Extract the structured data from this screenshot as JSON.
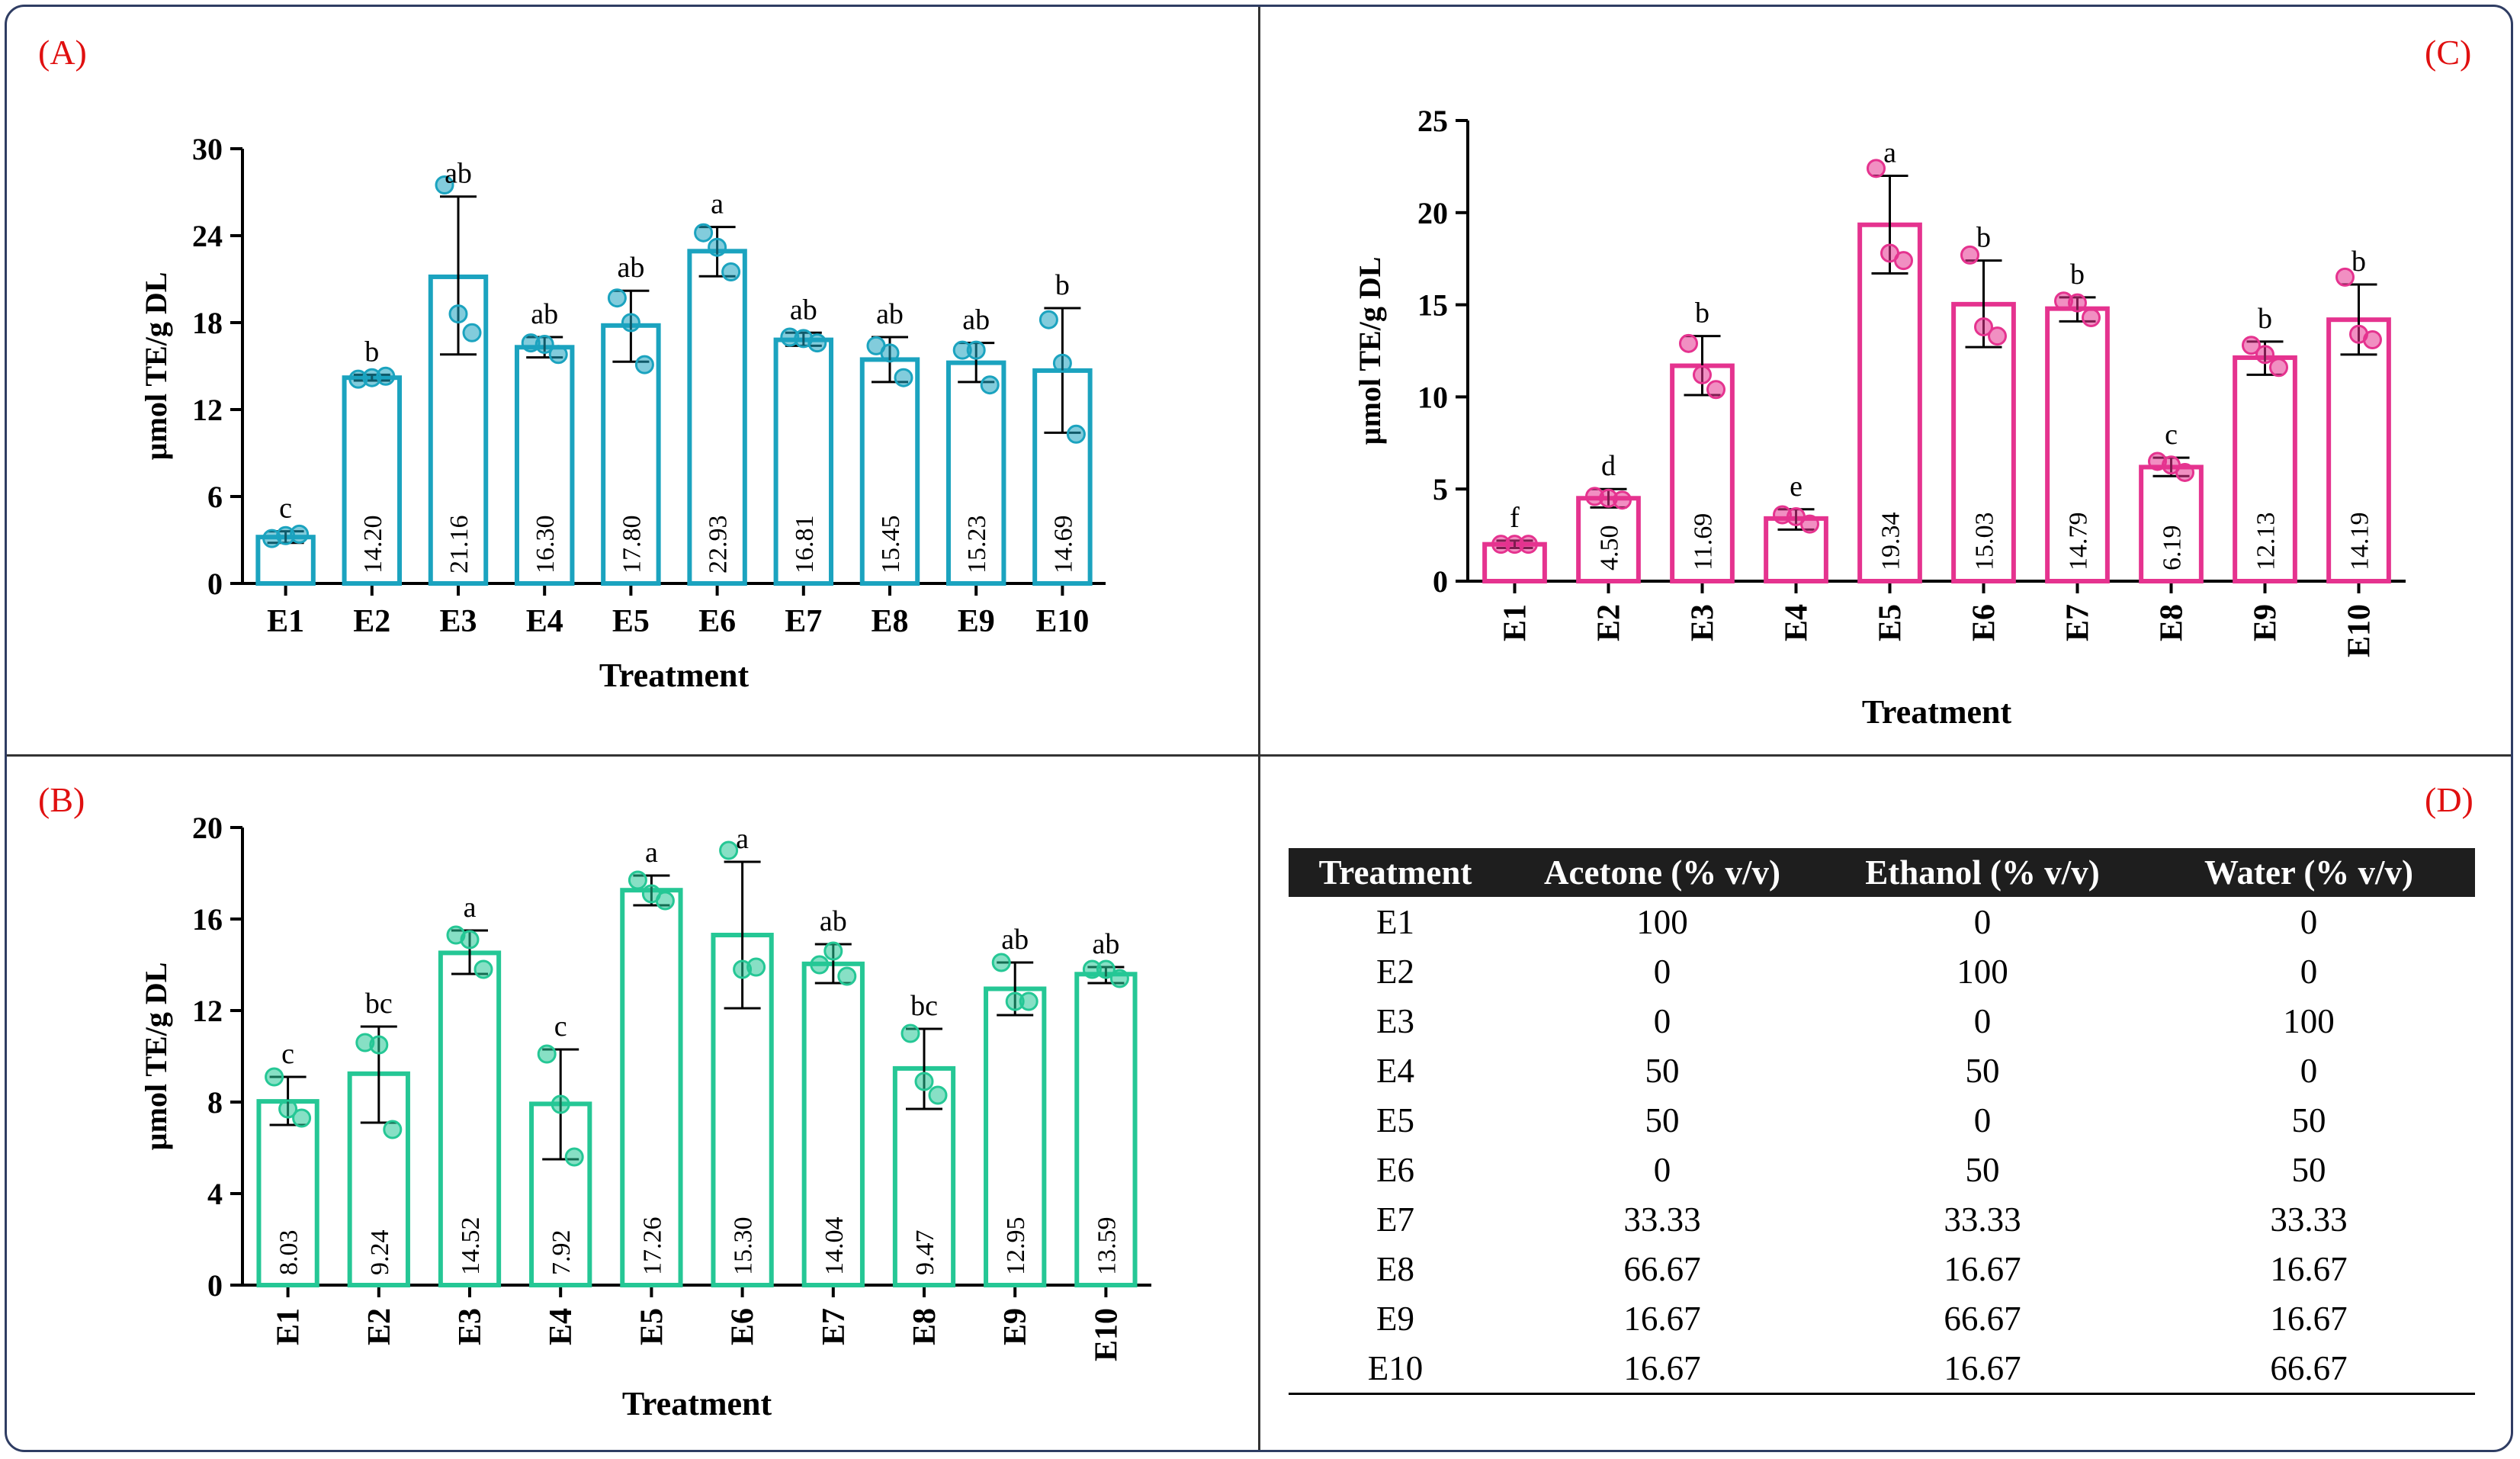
{
  "panels": {
    "A": {
      "label": "(A)",
      "color": "#1ba3bf"
    },
    "B": {
      "label": "(B)",
      "color": "#25c795"
    },
    "C": {
      "label": "(C)",
      "color": "#e5338f"
    },
    "D": {
      "label": "(D)"
    }
  },
  "chart_data": [
    {
      "id": "A",
      "type": "bar",
      "title": "",
      "xlabel": "Treatment",
      "ylabel": "µmol TE/g DL",
      "ylim": [
        0,
        30
      ],
      "yticks": [
        0,
        6,
        12,
        18,
        24,
        30
      ],
      "categories": [
        "E1",
        "E2",
        "E3",
        "E4",
        "E5",
        "E6",
        "E7",
        "E8",
        "E9",
        "E10"
      ],
      "values": [
        3.2,
        14.2,
        21.16,
        16.3,
        17.8,
        22.93,
        16.81,
        15.45,
        15.23,
        14.69
      ],
      "value_labels": [
        "",
        "14.20",
        "21.16",
        "16.30",
        "17.80",
        "22.93",
        "16.81",
        "15.45",
        "15.23",
        "14.69"
      ],
      "error_low": [
        2.8,
        14.0,
        15.8,
        15.6,
        15.3,
        21.2,
        16.4,
        13.9,
        13.9,
        10.4
      ],
      "error_high": [
        3.6,
        14.4,
        26.7,
        17.0,
        20.2,
        24.6,
        17.3,
        17.0,
        16.6,
        19.0
      ],
      "points": [
        [
          3.1,
          3.3,
          3.4
        ],
        [
          14.1,
          14.2,
          14.3
        ],
        [
          27.5,
          18.6,
          17.3
        ],
        [
          16.6,
          16.5,
          15.8
        ],
        [
          19.7,
          18.0,
          15.1
        ],
        [
          24.2,
          23.2,
          21.5
        ],
        [
          17.0,
          16.9,
          16.6
        ],
        [
          16.4,
          15.9,
          14.2
        ],
        [
          16.1,
          16.1,
          13.7
        ],
        [
          18.2,
          15.2,
          10.3
        ]
      ],
      "letters": [
        "c",
        "b",
        "ab",
        "ab",
        "ab",
        "a",
        "ab",
        "ab",
        "ab",
        "b"
      ],
      "x_tick_rotation": 0
    },
    {
      "id": "B",
      "type": "bar",
      "title": "",
      "xlabel": "Treatment",
      "ylabel": "µmol TE/g DL",
      "ylim": [
        0,
        20
      ],
      "yticks": [
        0,
        4,
        8,
        12,
        16,
        20
      ],
      "categories": [
        "E1",
        "E2",
        "E3",
        "E4",
        "E5",
        "E6",
        "E7",
        "E8",
        "E9",
        "E10"
      ],
      "values": [
        8.03,
        9.24,
        14.52,
        7.92,
        17.26,
        15.3,
        14.04,
        9.47,
        12.95,
        13.59
      ],
      "value_labels": [
        "8.03",
        "9.24",
        "14.52",
        "7.92",
        "17.26",
        "15.30",
        "14.04",
        "9.47",
        "12.95",
        "13.59"
      ],
      "error_low": [
        7.0,
        7.1,
        13.6,
        5.5,
        16.6,
        12.1,
        13.2,
        7.7,
        11.8,
        13.2
      ],
      "error_high": [
        9.1,
        11.3,
        15.5,
        10.3,
        17.9,
        18.5,
        14.9,
        11.2,
        14.1,
        13.9
      ],
      "points": [
        [
          9.1,
          7.7,
          7.3
        ],
        [
          10.6,
          10.5,
          6.8
        ],
        [
          15.3,
          15.1,
          13.8
        ],
        [
          10.1,
          7.9,
          5.6
        ],
        [
          17.7,
          17.1,
          16.8
        ],
        [
          19.0,
          13.8,
          13.9
        ],
        [
          14.0,
          14.6,
          13.5
        ],
        [
          11.0,
          8.9,
          8.3
        ],
        [
          14.1,
          12.4,
          12.4
        ],
        [
          13.8,
          13.8,
          13.4
        ]
      ],
      "letters": [
        "c",
        "bc",
        "a",
        "c",
        "a",
        "a",
        "ab",
        "bc",
        "ab",
        "ab"
      ],
      "x_tick_rotation": -90
    },
    {
      "id": "C",
      "type": "bar",
      "title": "",
      "xlabel": "Treatment",
      "ylabel": "µmol TE/g DL",
      "ylim": [
        0,
        25
      ],
      "yticks": [
        0,
        5,
        10,
        15,
        20,
        25
      ],
      "categories": [
        "E1",
        "E2",
        "E3",
        "E4",
        "E5",
        "E6",
        "E7",
        "E8",
        "E9",
        "E10"
      ],
      "values": [
        2.0,
        4.5,
        11.69,
        3.4,
        19.34,
        15.03,
        14.79,
        6.19,
        12.13,
        14.19
      ],
      "value_labels": [
        "",
        "4.50",
        "11.69",
        "",
        "19.34",
        "15.03",
        "14.79",
        "6.19",
        "12.13",
        "14.19"
      ],
      "error_low": [
        1.8,
        4.0,
        10.1,
        2.8,
        16.7,
        12.7,
        14.1,
        5.7,
        11.2,
        12.3
      ],
      "error_high": [
        2.2,
        5.0,
        13.3,
        3.9,
        22.0,
        17.4,
        15.4,
        6.7,
        13.0,
        16.1
      ],
      "points": [
        [
          2.0,
          2.0,
          2.0
        ],
        [
          4.6,
          4.5,
          4.4
        ],
        [
          12.9,
          11.2,
          10.4
        ],
        [
          3.6,
          3.5,
          3.1
        ],
        [
          22.4,
          17.8,
          17.4
        ],
        [
          17.7,
          13.8,
          13.3
        ],
        [
          15.2,
          15.1,
          14.3
        ],
        [
          6.5,
          6.3,
          5.9
        ],
        [
          12.8,
          12.3,
          11.6
        ],
        [
          16.5,
          13.4,
          13.1
        ]
      ],
      "letters": [
        "f",
        "d",
        "b",
        "e",
        "a",
        "b",
        "b",
        "c",
        "b",
        "b"
      ],
      "x_tick_rotation": -90
    }
  ],
  "table": {
    "headers": [
      "Treatment",
      "Acetone (% v/v)",
      "Ethanol (% v/v)",
      "Water (% v/v)"
    ],
    "rows": [
      [
        "E1",
        "100",
        "0",
        "0"
      ],
      [
        "E2",
        "0",
        "100",
        "0"
      ],
      [
        "E3",
        "0",
        "0",
        "100"
      ],
      [
        "E4",
        "50",
        "50",
        "0"
      ],
      [
        "E5",
        "50",
        "0",
        "50"
      ],
      [
        "E6",
        "0",
        "50",
        "50"
      ],
      [
        "E7",
        "33.33",
        "33.33",
        "33.33"
      ],
      [
        "E8",
        "66.67",
        "16.67",
        "16.67"
      ],
      [
        "E9",
        "16.67",
        "66.67",
        "16.67"
      ],
      [
        "E10",
        "16.67",
        "16.67",
        "66.67"
      ]
    ]
  }
}
